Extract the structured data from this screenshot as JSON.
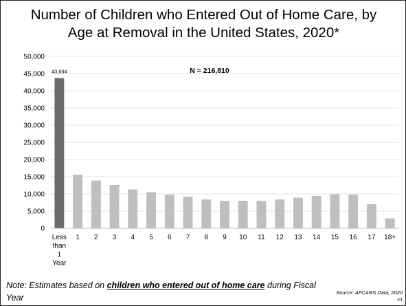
{
  "slide": {
    "title_line1": "Number of Children who Entered Out of Home Care, by",
    "title_line2": "Age at Removal in the United States, 2020*",
    "note_prefix": "Note: Estimates based on ",
    "note_emphasis": "children who entered out of home care",
    "note_suffix": " during Fiscal Year",
    "source": "Source: AFCARS Data, 2020 v1"
  },
  "chart_data": {
    "type": "bar",
    "title": "Number of Children who Entered Out of Home Care, by Age at Removal in the United States, 2020*",
    "annotation": "N = 216,810",
    "categories": [
      "Less than 1 Year",
      "1",
      "2",
      "3",
      "4",
      "5",
      "6",
      "7",
      "8",
      "9",
      "10",
      "11",
      "12",
      "13",
      "14",
      "15",
      "16",
      "17",
      "18+"
    ],
    "category_lines": [
      [
        "Less",
        "than",
        "1",
        "Year"
      ],
      [
        "1"
      ],
      [
        "2"
      ],
      [
        "3"
      ],
      [
        "4"
      ],
      [
        "5"
      ],
      [
        "6"
      ],
      [
        "7"
      ],
      [
        "8"
      ],
      [
        "9"
      ],
      [
        "10"
      ],
      [
        "11"
      ],
      [
        "12"
      ],
      [
        "13"
      ],
      [
        "14"
      ],
      [
        "15"
      ],
      [
        "16"
      ],
      [
        "17"
      ],
      [
        "18+"
      ]
    ],
    "values": [
      43694,
      15600,
      13900,
      12600,
      11300,
      10500,
      9800,
      9200,
      8400,
      8000,
      8000,
      8000,
      8400,
      8900,
      9400,
      9900,
      9800,
      7000,
      2900
    ],
    "data_labels": [
      "43,694"
    ],
    "ylim": [
      0,
      50000
    ],
    "yticks": [
      0,
      5000,
      10000,
      15000,
      20000,
      25000,
      30000,
      35000,
      40000,
      45000,
      50000
    ],
    "ytick_labels": [
      "0",
      "5,000",
      "10,000",
      "15,000",
      "20,000",
      "25,000",
      "30,000",
      "35,000",
      "40,000",
      "45,000",
      "50,000"
    ],
    "grid": true,
    "colors": {
      "first_bar": "#6b6b6b",
      "bars": "#bfbfbf",
      "grid": "#e3e3e3",
      "axis": "#bfbfbf"
    }
  }
}
